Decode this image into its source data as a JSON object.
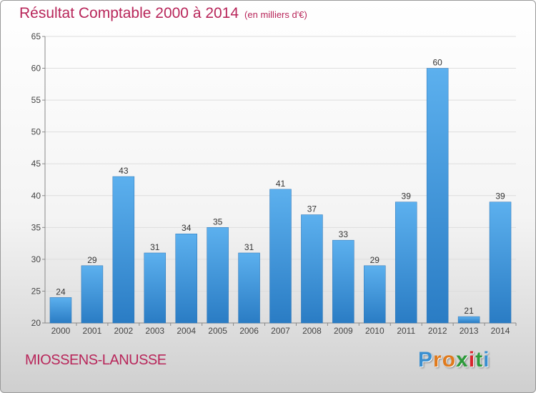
{
  "chart_data": {
    "type": "bar",
    "title": "Résultat Comptable 2000 à 2014",
    "subtitle": "(en milliers d'€)",
    "categories": [
      "2000",
      "2001",
      "2002",
      "2003",
      "2004",
      "2005",
      "2006",
      "2007",
      "2008",
      "2009",
      "2010",
      "2011",
      "2012",
      "2013",
      "2014"
    ],
    "values": [
      24,
      29,
      43,
      31,
      34,
      35,
      31,
      41,
      37,
      33,
      29,
      39,
      60,
      21,
      39
    ],
    "ylim": [
      20,
      65
    ],
    "yticks": [
      20,
      25,
      30,
      35,
      40,
      45,
      50,
      55,
      60,
      65
    ],
    "grid": true,
    "bar_color": "#4a9de0"
  },
  "footer": {
    "town": "MIOSSENS-LANUSSE",
    "logo_letters": [
      "P",
      "r",
      "o",
      "x",
      "i",
      "t",
      "i"
    ],
    "logo_colors": [
      "#3a8fd0",
      "#e07a1c",
      "#e07a1c",
      "#2d9a3a",
      "#d9262e",
      "#2d9a3a",
      "#3a8fd0"
    ]
  }
}
